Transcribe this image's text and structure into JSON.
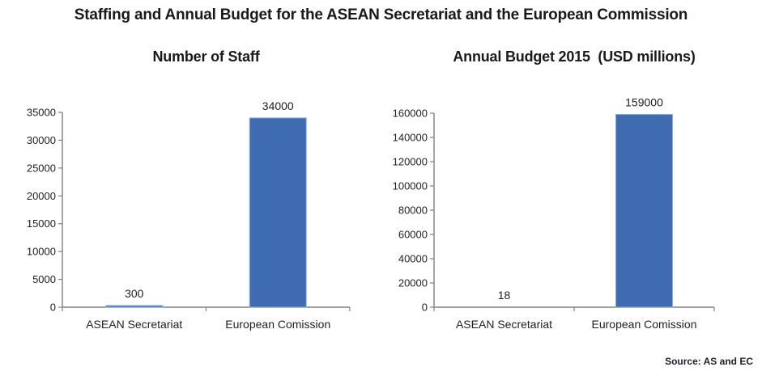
{
  "page": {
    "title": "Staffing and Annual Budget for the ASEAN Secretariat and the European Commission",
    "source_note": "Source: AS and EC"
  },
  "colors": {
    "bar_fill": "#3F6CB0",
    "bar_border": "#8FAFD9",
    "axis_line": "#808080",
    "text": "#1F1F1F"
  },
  "chart_data": [
    {
      "type": "bar",
      "title": "Number of Staff",
      "categories": [
        "ASEAN Secretariat",
        "European Comission"
      ],
      "values": [
        300,
        34000
      ],
      "data_labels": [
        "300",
        "34000"
      ],
      "xlabel": "",
      "ylabel": "",
      "ylim": [
        0,
        35000
      ],
      "yticks": [
        0,
        5000,
        10000,
        15000,
        20000,
        25000,
        30000,
        35000
      ],
      "grid": false,
      "legend": "none"
    },
    {
      "type": "bar",
      "title": "Annual Budget 2015  (USD millions)",
      "categories": [
        "ASEAN Secretariat",
        "European Comission"
      ],
      "values": [
        18,
        159000
      ],
      "data_labels": [
        "18",
        "159000"
      ],
      "xlabel": "",
      "ylabel": "",
      "ylim": [
        0,
        160000
      ],
      "yticks": [
        0,
        20000,
        40000,
        60000,
        80000,
        100000,
        120000,
        140000,
        160000
      ],
      "grid": false,
      "legend": "none"
    }
  ]
}
